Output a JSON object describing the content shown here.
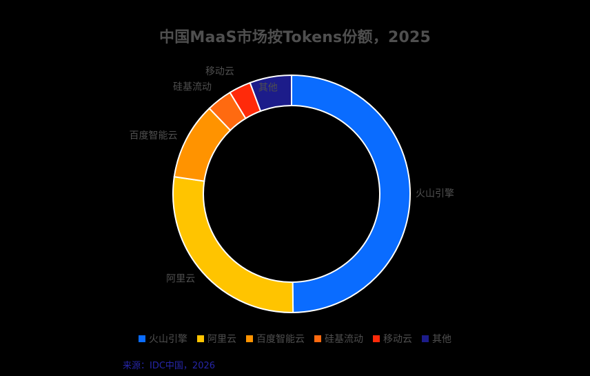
{
  "chart_data": {
    "type": "pie",
    "variant": "donut",
    "title": "中国MaaS市场按Tokens份额，2025",
    "categories": [
      "火山引擎",
      "阿里云",
      "百度智能云",
      "硅基流动",
      "移动云",
      "其他"
    ],
    "values": [
      49.8,
      27.5,
      10.5,
      3.5,
      3.0,
      5.7
    ],
    "colors": [
      "#0a6cff",
      "#ffc400",
      "#ff9300",
      "#ff6a10",
      "#ff2a0a",
      "#1c1c8a"
    ],
    "legend_position": "bottom"
  },
  "source": "来源：IDC中国，2026"
}
